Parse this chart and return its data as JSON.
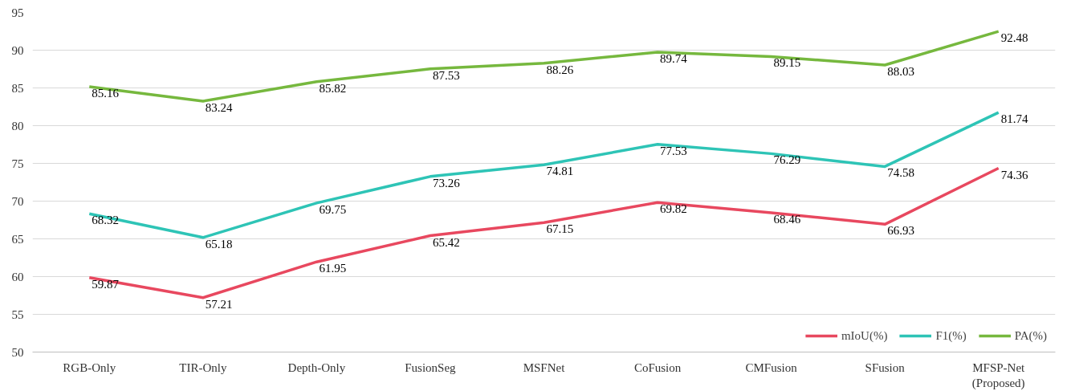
{
  "chart_data": {
    "type": "line",
    "categories": [
      "RGB-Only",
      "TIR-Only",
      "Depth-Only",
      "FusionSeg",
      "MSFNet",
      "CoFusion",
      "CMFusion",
      "SFusion",
      "MFSP-Net\n(Proposed)"
    ],
    "series": [
      {
        "name": "mIoU(%)",
        "color": "#e8485f",
        "values": [
          59.87,
          57.21,
          61.95,
          65.42,
          67.15,
          69.82,
          68.46,
          66.93,
          74.36
        ]
      },
      {
        "name": "F1(%)",
        "color": "#2ec4b6",
        "values": [
          68.32,
          65.18,
          69.75,
          73.26,
          74.81,
          77.53,
          76.29,
          74.58,
          81.74
        ]
      },
      {
        "name": "PA(%)",
        "color": "#76b83e",
        "values": [
          85.16,
          83.24,
          85.82,
          87.53,
          88.26,
          89.74,
          89.15,
          88.03,
          92.48
        ]
      }
    ],
    "ylim": [
      50,
      95
    ],
    "yticks": [
      50,
      55,
      60,
      65,
      70,
      75,
      80,
      85,
      90,
      95
    ],
    "grid": "y",
    "legend": "bottom right",
    "data_labels": true,
    "marker": "none",
    "line_style": "solid"
  }
}
